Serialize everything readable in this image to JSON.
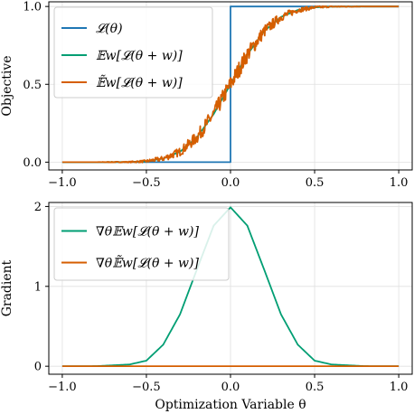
{
  "chart_data": [
    {
      "type": "line",
      "title": "",
      "xlabel": "",
      "ylabel": "Objective",
      "xlim": [
        -1.08,
        1.08
      ],
      "ylim": [
        -0.05,
        1.03
      ],
      "xticks": [
        -1.0,
        -0.5,
        0.0,
        0.5,
        1.0
      ],
      "xtick_labels": [
        "−1.0",
        "−0.5",
        "0.0",
        "0.5",
        "1.0"
      ],
      "yticks": [
        0.0,
        0.5,
        1.0
      ],
      "ytick_labels": [
        "0.0",
        "0.5",
        "1.0"
      ],
      "grid": true,
      "legend_position": "top-left",
      "series": [
        {
          "name": "𝓛(θ)",
          "color": "#1f77b4",
          "kind": "step",
          "x": [
            -1.0,
            0.0,
            0.0,
            1.0
          ],
          "y": [
            0.0,
            0.0,
            1.0,
            1.0
          ]
        },
        {
          "name": "𝔼w[𝓛(θ + w)]",
          "color": "#009e73",
          "kind": "smooth",
          "x": [
            -1.0,
            -0.8,
            -0.6,
            -0.5,
            -0.4,
            -0.3,
            -0.2,
            -0.1,
            0.0,
            0.1,
            0.2,
            0.3,
            0.4,
            0.5,
            0.6,
            0.8,
            1.0
          ],
          "y": [
            0.0,
            0.0,
            0.001,
            0.006,
            0.023,
            0.067,
            0.159,
            0.309,
            0.5,
            0.691,
            0.841,
            0.933,
            0.977,
            0.994,
            0.999,
            1.0,
            1.0
          ]
        },
        {
          "name": "𝔼̃w[𝓛(θ + w)]",
          "color": "#d55e00",
          "kind": "noisy",
          "x": [
            -1.0,
            -0.8,
            -0.6,
            -0.5,
            -0.4,
            -0.3,
            -0.2,
            -0.1,
            0.0,
            0.1,
            0.2,
            0.3,
            0.4,
            0.5,
            0.6,
            0.8,
            1.0
          ],
          "y": [
            0.0,
            0.0,
            0.001,
            0.006,
            0.023,
            0.067,
            0.159,
            0.309,
            0.5,
            0.691,
            0.841,
            0.933,
            0.977,
            0.994,
            0.999,
            1.0,
            1.0
          ]
        }
      ]
    },
    {
      "type": "line",
      "title": "",
      "xlabel": "Optimization Variable θ",
      "ylabel": "Gradient",
      "xlim": [
        -1.08,
        1.08
      ],
      "ylim": [
        -0.1,
        2.05
      ],
      "xticks": [
        -1.0,
        -0.5,
        0.0,
        0.5,
        1.0
      ],
      "xtick_labels": [
        "−1.0",
        "−0.5",
        "0.0",
        "0.5",
        "1.0"
      ],
      "yticks": [
        0,
        1,
        2
      ],
      "ytick_labels": [
        "0",
        "1",
        "2"
      ],
      "grid": true,
      "legend_position": "top-left",
      "series": [
        {
          "name": "∇θ𝔼w[𝓛(θ + w)]",
          "color": "#009e73",
          "kind": "smooth",
          "x": [
            -1.0,
            -0.8,
            -0.6,
            -0.5,
            -0.4,
            -0.3,
            -0.2,
            -0.1,
            0.0,
            0.1,
            0.2,
            0.3,
            0.4,
            0.5,
            0.6,
            0.8,
            1.0
          ],
          "y": [
            0.0,
            0.001,
            0.022,
            0.07,
            0.27,
            0.65,
            1.21,
            1.76,
            1.99,
            1.76,
            1.21,
            0.65,
            0.27,
            0.07,
            0.022,
            0.001,
            0.0
          ]
        },
        {
          "name": "∇θ𝔼̃w[𝓛(θ + w)]",
          "color": "#d55e00",
          "kind": "smooth",
          "x": [
            -1.0,
            1.0
          ],
          "y": [
            0.0,
            0.0
          ]
        }
      ]
    }
  ]
}
